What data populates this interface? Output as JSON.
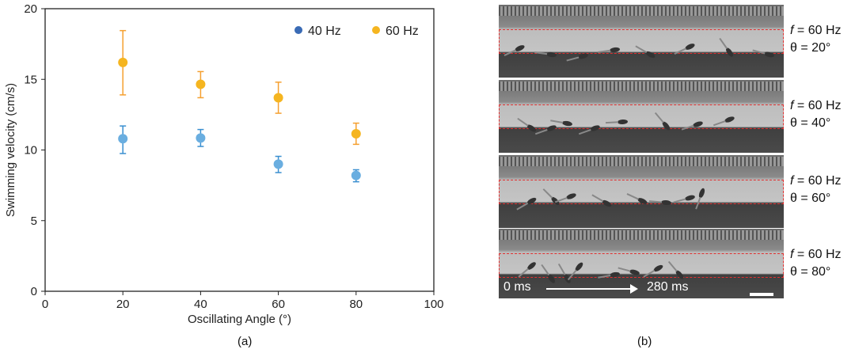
{
  "chart_data": {
    "type": "scatter",
    "xlabel": "Oscillating Angle (°)",
    "ylabel": "Swimming velocity (cm/s)",
    "xlim": [
      0,
      100
    ],
    "ylim": [
      0,
      20
    ],
    "xticks": [
      0,
      20,
      40,
      60,
      80,
      100
    ],
    "yticks": [
      0,
      5,
      10,
      15,
      20
    ],
    "grid": false,
    "legend_position": "top-right",
    "series": [
      {
        "name": "40 Hz",
        "color": "#6aaee0",
        "legend_color": "#3a6bb5",
        "error_color": "#3a8fd0",
        "x": [
          20,
          40,
          60,
          80
        ],
        "y": [
          10.8,
          10.85,
          9.0,
          8.2
        ],
        "err_low": [
          9.75,
          10.25,
          8.4,
          7.75
        ],
        "err_high": [
          11.7,
          11.45,
          9.55,
          8.6
        ]
      },
      {
        "name": "60 Hz",
        "color": "#f5b520",
        "legend_color": "#f5b520",
        "error_color": "#f5a030",
        "x": [
          20,
          40,
          60,
          80
        ],
        "y": [
          16.2,
          14.65,
          13.7,
          11.15
        ],
        "err_low": [
          13.9,
          13.7,
          12.6,
          10.4
        ],
        "err_high": [
          18.45,
          15.55,
          14.8,
          11.9
        ]
      }
    ]
  },
  "captions": {
    "a": "(a)",
    "b": "(b)"
  },
  "panel_b": {
    "rows": [
      {
        "f": "= 60 Hz",
        "theta": "θ = 20°"
      },
      {
        "f": "= 60 Hz",
        "theta": "θ = 40°"
      },
      {
        "f": "= 60 Hz",
        "theta": "θ = 60°"
      },
      {
        "f": "= 60 Hz",
        "theta": "θ = 80°"
      }
    ],
    "f_symbol": "f",
    "time_start": "0 ms",
    "time_end": "280 ms"
  }
}
